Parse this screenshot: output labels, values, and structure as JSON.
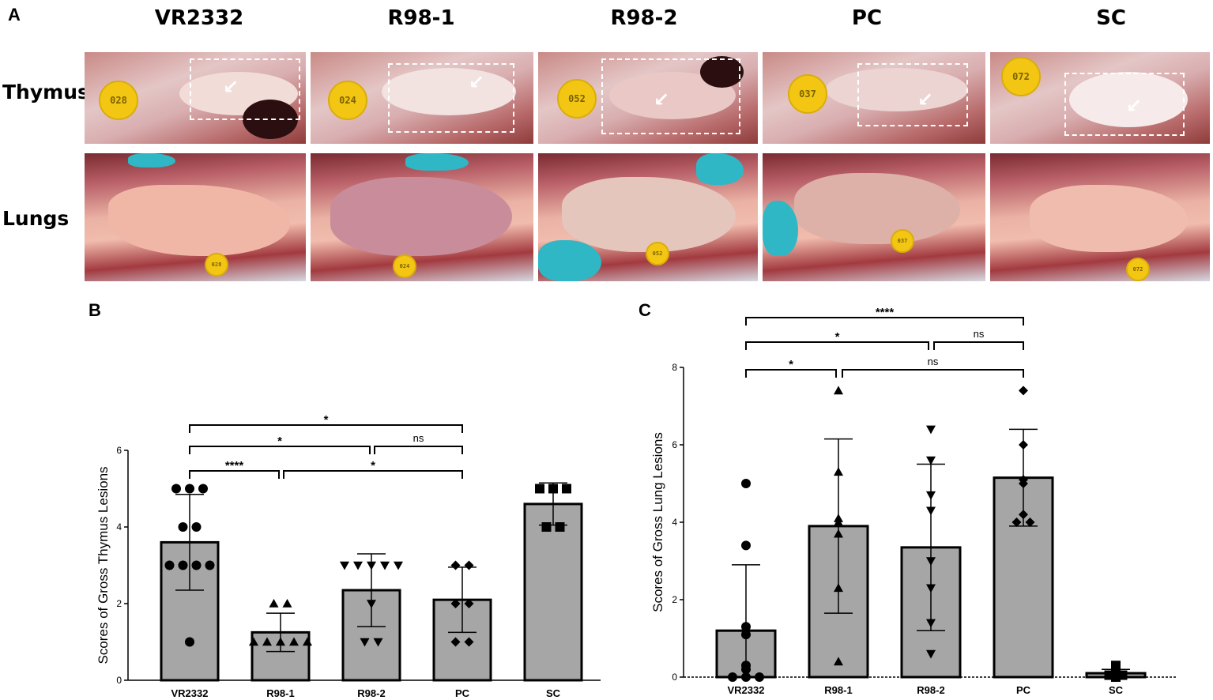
{
  "panel_labels": {
    "a": "A",
    "b": "B",
    "c": "C"
  },
  "groups": [
    "VR2332",
    "R98-1",
    "R98-2",
    "PC",
    "SC"
  ],
  "rows": {
    "thymus": "Thymus",
    "lungs": "Lungs"
  },
  "ear_tags": {
    "thymus": [
      "028",
      "024",
      "052",
      "037",
      "072"
    ],
    "lungs": [
      "028",
      "024",
      "052",
      "037",
      "072"
    ]
  },
  "colors": {
    "bar": "#a6a6a6",
    "tag": "#f3c614",
    "glove": "#2fb7c6"
  },
  "chart_data": [
    {
      "type": "bar",
      "panel": "B",
      "title": "",
      "xlabel": "",
      "ylabel": "Scores of Gross Thymus Lesions",
      "ylim": [
        0,
        6
      ],
      "yticks": [
        0,
        2,
        4,
        6
      ],
      "categories": [
        "VR2332",
        "R98-1",
        "R98-2",
        "PC",
        "SC"
      ],
      "values": [
        3.6,
        1.25,
        2.35,
        2.1,
        4.6
      ],
      "sd": [
        1.25,
        0.5,
        0.95,
        0.85,
        0.55
      ],
      "markers": [
        "circle",
        "triangle-up",
        "triangle-down",
        "diamond",
        "square"
      ],
      "points": [
        [
          5,
          5,
          5,
          4,
          4,
          3,
          3,
          3,
          3,
          1
        ],
        [
          2,
          2,
          1,
          1,
          1,
          1,
          1
        ],
        [
          3,
          3,
          3,
          3,
          3,
          2,
          1,
          1
        ],
        [
          3,
          3,
          2,
          2,
          1,
          1
        ],
        [
          5,
          5,
          5,
          4,
          4
        ]
      ],
      "comparisons": [
        {
          "from": "VR2332",
          "to": "PC",
          "label": "*"
        },
        {
          "from": "VR2332",
          "to": "R98-2",
          "label": "*"
        },
        {
          "from": "R98-2",
          "to": "PC",
          "label": "ns"
        },
        {
          "from": "VR2332",
          "to": "R98-1",
          "label": "****"
        },
        {
          "from": "R98-1",
          "to": "PC",
          "label": "*"
        }
      ]
    },
    {
      "type": "bar",
      "panel": "C",
      "title": "",
      "xlabel": "",
      "ylabel": "Scores of Gross Lung Lesions",
      "ylim": [
        0,
        8
      ],
      "yticks": [
        0,
        2,
        4,
        6,
        8
      ],
      "categories": [
        "VR2332",
        "R98-1",
        "R98-2",
        "PC",
        "SC"
      ],
      "values": [
        1.2,
        3.9,
        3.35,
        5.15,
        0.1
      ],
      "sd": [
        1.7,
        2.25,
        2.15,
        1.25,
        0.1
      ],
      "markers": [
        "circle",
        "triangle-up",
        "triangle-down",
        "diamond",
        "square"
      ],
      "points": [
        [
          5,
          3.4,
          1.3,
          1.1,
          0.3,
          0.2,
          0,
          0,
          0
        ],
        [
          7.4,
          5.3,
          4.1,
          4,
          3.7,
          2.3,
          0.4
        ],
        [
          6.4,
          5.6,
          4.7,
          4.3,
          3,
          2.3,
          1.4,
          0.6
        ],
        [
          7.4,
          6,
          5.1,
          5,
          4.2,
          4,
          4
        ],
        [
          0.3,
          0.15,
          0.1,
          0.05,
          0.05,
          0
        ]
      ],
      "comparisons": [
        {
          "from": "VR2332",
          "to": "PC",
          "label": "****"
        },
        {
          "from": "VR2332",
          "to": "R98-2",
          "label": "*"
        },
        {
          "from": "R98-2",
          "to": "PC",
          "label": "ns"
        },
        {
          "from": "VR2332",
          "to": "R98-1",
          "label": "*"
        },
        {
          "from": "R98-1",
          "to": "PC",
          "label": "ns"
        }
      ]
    }
  ]
}
